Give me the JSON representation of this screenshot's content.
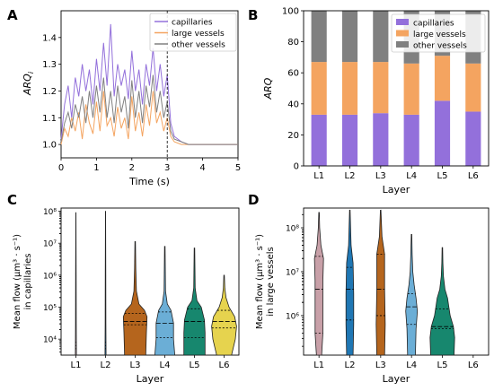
{
  "colors": {
    "capillaries": "#9370db",
    "large_vessels": "#f4a460",
    "other_vessels": "#808080"
  },
  "chart_data": [
    {
      "panel": "A",
      "type": "line",
      "xlabel": "Time (s)",
      "ylabel": "ARQ",
      "ylabel_sub": "i",
      "xlim": [
        0,
        5
      ],
      "ylim": [
        0.95,
        1.5
      ],
      "x_ticks": [
        0,
        1,
        2,
        3,
        4,
        5
      ],
      "y_ticks": [
        1.0,
        1.1,
        1.2,
        1.3,
        1.4
      ],
      "vline_x": 3.0,
      "legend_position": "top-right",
      "series": [
        {
          "name": "capillaries",
          "color": "#9370db",
          "x": [
            0,
            0.1,
            0.2,
            0.3,
            0.4,
            0.5,
            0.6,
            0.7,
            0.8,
            0.9,
            1.0,
            1.1,
            1.2,
            1.3,
            1.4,
            1.5,
            1.6,
            1.7,
            1.8,
            1.9,
            2.0,
            2.1,
            2.2,
            2.3,
            2.4,
            2.5,
            2.6,
            2.7,
            2.8,
            2.9,
            3.0,
            3.1,
            3.2,
            3.4,
            3.6,
            3.8,
            4.0,
            4.5,
            5.0
          ],
          "y": [
            1.02,
            1.15,
            1.22,
            1.1,
            1.25,
            1.18,
            1.3,
            1.2,
            1.28,
            1.15,
            1.32,
            1.2,
            1.38,
            1.22,
            1.45,
            1.18,
            1.3,
            1.22,
            1.28,
            1.17,
            1.35,
            1.2,
            1.28,
            1.15,
            1.3,
            1.22,
            1.36,
            1.2,
            1.3,
            1.18,
            1.26,
            1.08,
            1.03,
            1.01,
            1.0,
            1.0,
            1.0,
            1.0,
            1.0
          ]
        },
        {
          "name": "large vessels",
          "color": "#f4a460",
          "x": [
            0,
            0.1,
            0.2,
            0.3,
            0.4,
            0.5,
            0.6,
            0.7,
            0.8,
            0.9,
            1.0,
            1.1,
            1.2,
            1.3,
            1.4,
            1.5,
            1.6,
            1.7,
            1.8,
            1.9,
            2.0,
            2.1,
            2.2,
            2.3,
            2.4,
            2.5,
            2.6,
            2.7,
            2.8,
            2.9,
            3.0,
            3.1,
            3.2,
            3.4,
            3.6,
            3.8,
            4.0,
            4.5,
            5.0
          ],
          "y": [
            1.0,
            1.06,
            1.03,
            1.1,
            1.05,
            1.12,
            1.02,
            1.15,
            1.08,
            1.04,
            1.16,
            1.05,
            1.2,
            1.07,
            1.1,
            1.03,
            1.14,
            1.06,
            1.1,
            1.02,
            1.18,
            1.05,
            1.12,
            1.03,
            1.15,
            1.07,
            1.2,
            1.08,
            1.12,
            1.05,
            1.1,
            1.03,
            1.01,
            1.0,
            1.0,
            1.0,
            1.0,
            1.0,
            1.0
          ]
        },
        {
          "name": "other vessels",
          "color": "#808080",
          "x": [
            0,
            0.1,
            0.2,
            0.3,
            0.4,
            0.5,
            0.6,
            0.7,
            0.8,
            0.9,
            1.0,
            1.1,
            1.2,
            1.3,
            1.4,
            1.5,
            1.6,
            1.7,
            1.8,
            1.9,
            2.0,
            2.1,
            2.2,
            2.3,
            2.4,
            2.5,
            2.6,
            2.7,
            2.8,
            2.9,
            3.0,
            3.1,
            3.2,
            3.4,
            3.6,
            3.8,
            4.0,
            4.5,
            5.0
          ],
          "y": [
            1.01,
            1.08,
            1.12,
            1.06,
            1.15,
            1.1,
            1.18,
            1.08,
            1.2,
            1.1,
            1.22,
            1.12,
            1.25,
            1.1,
            1.2,
            1.08,
            1.22,
            1.12,
            1.18,
            1.06,
            1.24,
            1.1,
            1.2,
            1.08,
            1.22,
            1.14,
            1.26,
            1.12,
            1.2,
            1.1,
            1.16,
            1.05,
            1.02,
            1.01,
            1.0,
            1.0,
            1.0,
            1.0,
            1.0
          ]
        }
      ]
    },
    {
      "panel": "B",
      "type": "bar",
      "stacked": true,
      "xlabel": "Layer",
      "ylabel": "ARQ",
      "ylim": [
        0,
        100
      ],
      "y_ticks": [
        0,
        20,
        40,
        60,
        80,
        100
      ],
      "categories": [
        "L1",
        "L2",
        "L3",
        "L4",
        "L5",
        "L6"
      ],
      "legend_position": "top-right",
      "series": [
        {
          "name": "capillaries",
          "color": "#9370db",
          "values": [
            33,
            33,
            34,
            33,
            42,
            35
          ]
        },
        {
          "name": "large vessels",
          "color": "#f4a460",
          "values": [
            34,
            34,
            33,
            33,
            29,
            31
          ]
        },
        {
          "name": "other vessels",
          "color": "#808080",
          "values": [
            33,
            33,
            33,
            34,
            29,
            34
          ]
        }
      ]
    },
    {
      "panel": "C",
      "type": "violin",
      "xlabel": "Layer",
      "ylabel_line1": "Mean flow (μm³ · s⁻¹)",
      "ylabel_line2": "in capillaries",
      "y_scale": "log",
      "ylim_log10": [
        3.5,
        8.1
      ],
      "y_ticks": [
        {
          "value": 4,
          "label": "10⁴"
        },
        {
          "value": 5,
          "label": "10⁵"
        },
        {
          "value": 6,
          "label": "10⁶"
        },
        {
          "value": 7,
          "label": "10⁷"
        },
        {
          "value": 8,
          "label": "10⁸"
        }
      ],
      "categories": [
        "L1",
        "L2",
        "L3",
        "L4",
        "L5",
        "L6"
      ],
      "violins": [
        {
          "layer": "L1",
          "color": "#c8a0a8",
          "min": 3.5,
          "max": 7.95,
          "q1": 3.7,
          "median": 3.8,
          "q3": 3.9,
          "profile": [
            [
              3.5,
              0.04
            ],
            [
              4.5,
              0.03
            ],
            [
              6.0,
              0.02
            ],
            [
              7.95,
              0.01
            ]
          ]
        },
        {
          "layer": "L2",
          "color": "#1f77b4",
          "min": 3.5,
          "max": 8.0,
          "q1": 3.7,
          "median": 3.8,
          "q3": 3.9,
          "profile": [
            [
              3.5,
              0.04
            ],
            [
              4.5,
              0.03
            ],
            [
              6.0,
              0.02
            ],
            [
              8.0,
              0.01
            ]
          ]
        },
        {
          "layer": "L3",
          "color": "#b5651d",
          "min": 3.5,
          "max": 7.05,
          "q1": 4.45,
          "median": 4.55,
          "q3": 4.8,
          "profile": [
            [
              3.5,
              0.85
            ],
            [
              4.2,
              0.9
            ],
            [
              4.7,
              0.95
            ],
            [
              4.9,
              0.75
            ],
            [
              5.1,
              0.3
            ],
            [
              5.5,
              0.1
            ],
            [
              6.2,
              0.05
            ],
            [
              7.05,
              0.02
            ]
          ]
        },
        {
          "layer": "L4",
          "color": "#6baed6",
          "min": 3.5,
          "max": 6.9,
          "q1": 4.05,
          "median": 4.5,
          "q3": 4.85,
          "profile": [
            [
              3.5,
              0.8
            ],
            [
              4.0,
              0.7
            ],
            [
              4.5,
              0.7
            ],
            [
              4.9,
              0.5
            ],
            [
              5.1,
              0.2
            ],
            [
              5.5,
              0.06
            ],
            [
              6.9,
              0.02
            ]
          ]
        },
        {
          "layer": "L5",
          "color": "#17876e",
          "min": 3.5,
          "max": 6.85,
          "q1": 4.05,
          "median": 4.55,
          "q3": 4.95,
          "profile": [
            [
              3.5,
              0.85
            ],
            [
              4.2,
              0.85
            ],
            [
              4.6,
              0.8
            ],
            [
              5.0,
              0.55
            ],
            [
              5.2,
              0.2
            ],
            [
              5.6,
              0.06
            ],
            [
              6.85,
              0.02
            ]
          ]
        },
        {
          "layer": "L6",
          "color": "#e6d34e",
          "min": 3.5,
          "max": 6.0,
          "q1": 4.35,
          "median": 4.55,
          "q3": 4.9,
          "profile": [
            [
              3.5,
              0.6
            ],
            [
              4.0,
              0.9
            ],
            [
              4.4,
              1.0
            ],
            [
              4.7,
              0.85
            ],
            [
              5.0,
              0.4
            ],
            [
              5.3,
              0.15
            ],
            [
              5.6,
              0.06
            ],
            [
              6.0,
              0.02
            ]
          ]
        }
      ]
    },
    {
      "panel": "D",
      "type": "violin",
      "xlabel": "Layer",
      "ylabel_line1": "Mean flow (μm³ · s⁻¹)",
      "ylabel_line2": "in large vessels",
      "y_scale": "log",
      "ylim_log10": [
        5.1,
        8.45
      ],
      "y_ticks": [
        {
          "value": 6,
          "label": "10⁶"
        },
        {
          "value": 7,
          "label": "10⁷"
        },
        {
          "value": 8,
          "label": "10⁸"
        }
      ],
      "categories": [
        "L1",
        "L2",
        "L3",
        "L4",
        "L5",
        "L6"
      ],
      "violins": [
        {
          "layer": "L1",
          "color": "#c8a0a8",
          "min": 5.1,
          "max": 8.35,
          "q1": 5.6,
          "median": 6.6,
          "q3": 7.35,
          "profile": [
            [
              5.1,
              0.2
            ],
            [
              5.6,
              0.3
            ],
            [
              6.2,
              0.3
            ],
            [
              6.8,
              0.3
            ],
            [
              7.3,
              0.35
            ],
            [
              7.6,
              0.15
            ],
            [
              8.0,
              0.05
            ],
            [
              8.35,
              0.02
            ]
          ]
        },
        {
          "layer": "L2",
          "color": "#1f77b4",
          "min": 5.1,
          "max": 8.4,
          "q1": 5.9,
          "median": 6.6,
          "q3": 7.1,
          "profile": [
            [
              5.1,
              0.25
            ],
            [
              5.8,
              0.3
            ],
            [
              6.5,
              0.3
            ],
            [
              7.2,
              0.25
            ],
            [
              7.6,
              0.1
            ],
            [
              8.4,
              0.02
            ]
          ]
        },
        {
          "layer": "L3",
          "color": "#b5651d",
          "min": 5.1,
          "max": 8.4,
          "q1": 6.0,
          "median": 6.6,
          "q3": 7.4,
          "profile": [
            [
              5.1,
              0.3
            ],
            [
              5.8,
              0.35
            ],
            [
              6.6,
              0.3
            ],
            [
              7.4,
              0.3
            ],
            [
              7.8,
              0.1
            ],
            [
              8.4,
              0.02
            ]
          ]
        },
        {
          "layer": "L4",
          "color": "#6baed6",
          "min": 5.1,
          "max": 7.85,
          "q1": 5.8,
          "median": 6.2,
          "q3": 6.5,
          "profile": [
            [
              5.1,
              0.3
            ],
            [
              5.7,
              0.35
            ],
            [
              6.1,
              0.45
            ],
            [
              6.4,
              0.35
            ],
            [
              6.7,
              0.2
            ],
            [
              7.0,
              0.1
            ],
            [
              7.4,
              0.05
            ],
            [
              7.85,
              0.02
            ]
          ]
        },
        {
          "layer": "L5",
          "color": "#17876e",
          "min": 5.1,
          "max": 7.55,
          "q1": 5.7,
          "median": 5.75,
          "q3": 6.15,
          "profile": [
            [
              5.1,
              0.9
            ],
            [
              5.5,
              0.95
            ],
            [
              5.75,
              0.85
            ],
            [
              6.0,
              0.6
            ],
            [
              6.2,
              0.5
            ],
            [
              6.4,
              0.4
            ],
            [
              6.6,
              0.2
            ],
            [
              6.9,
              0.08
            ],
            [
              7.2,
              0.04
            ],
            [
              7.55,
              0.02
            ]
          ]
        }
      ]
    }
  ]
}
